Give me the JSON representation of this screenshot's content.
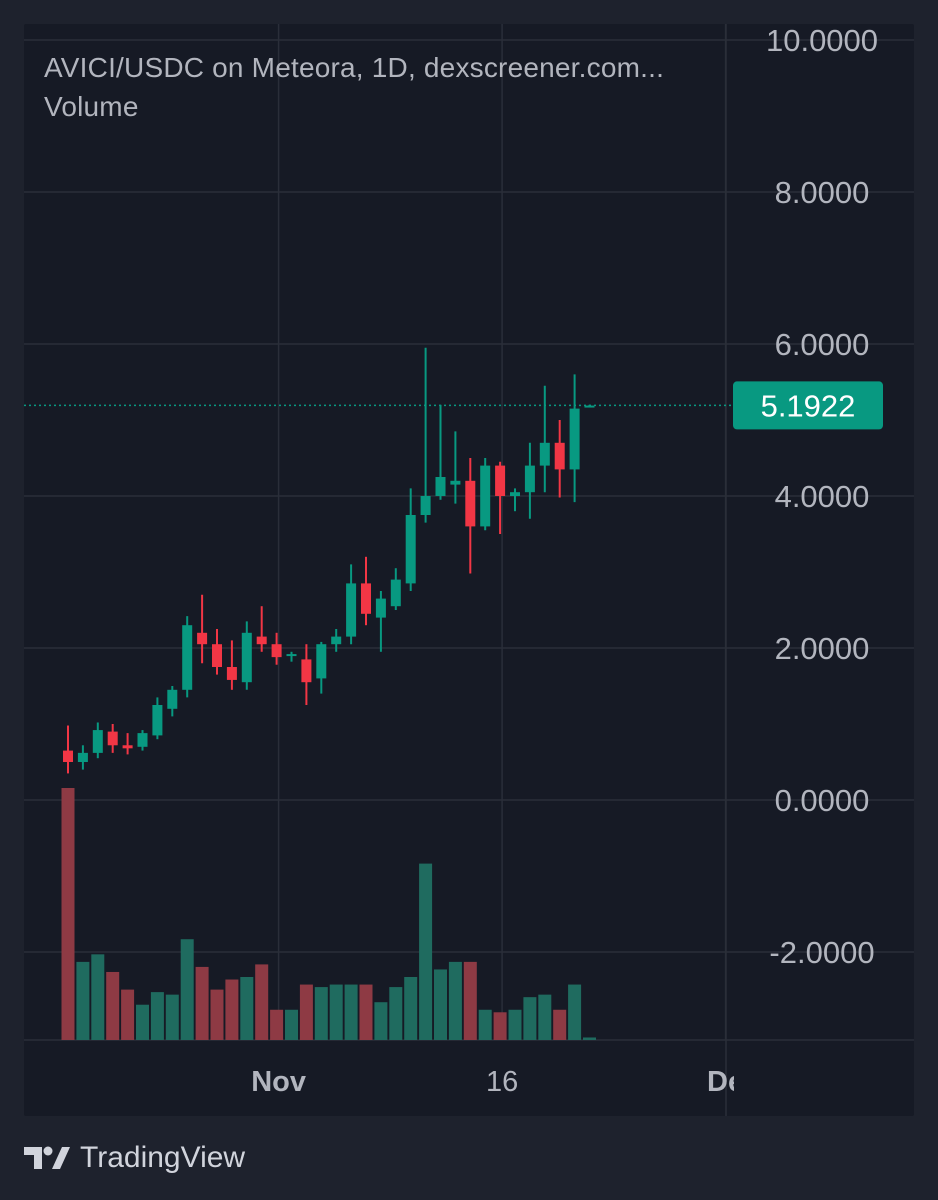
{
  "header": {
    "title": "AVICI/USDC on Meteora, 1D, dexscreener.com...",
    "volume_label": "Volume"
  },
  "footer": {
    "brand_icon": "tradingview-logo-icon",
    "brand_name": "TradingView"
  },
  "colors": {
    "background": "#161a25",
    "page_background": "#1e222d",
    "grid": "#2a2e39",
    "up": "#089981",
    "down": "#f23645",
    "volume_up": "#1f6b5f",
    "volume_down": "#8e3a44",
    "axis_text": "#b2b5be",
    "price_tag": "#089981"
  },
  "chart_data": {
    "type": "candlestick",
    "interval": "1D",
    "y_axis": {
      "ticks": [
        "10.0000",
        "8.0000",
        "6.0000",
        "4.0000",
        "2.0000",
        "0.0000",
        "-2.0000"
      ],
      "tick_values": [
        10,
        8,
        6,
        4,
        2,
        0,
        -2
      ],
      "range": [
        -3.2,
        10.4
      ],
      "position": "right"
    },
    "x_axis": {
      "ticks": [
        {
          "label": "Nov",
          "index": 14
        },
        {
          "label": "16",
          "index": 29
        },
        {
          "label": "De",
          "index": 44
        }
      ]
    },
    "last_price": {
      "value": 5.1922,
      "label": "5.1922"
    },
    "candles": [
      {
        "o": 0.65,
        "h": 0.98,
        "l": 0.35,
        "c": 0.5
      },
      {
        "o": 0.5,
        "h": 0.72,
        "l": 0.4,
        "c": 0.62
      },
      {
        "o": 0.62,
        "h": 1.02,
        "l": 0.55,
        "c": 0.92
      },
      {
        "o": 0.9,
        "h": 1.0,
        "l": 0.62,
        "c": 0.72
      },
      {
        "o": 0.72,
        "h": 0.88,
        "l": 0.6,
        "c": 0.68
      },
      {
        "o": 0.7,
        "h": 0.92,
        "l": 0.65,
        "c": 0.88
      },
      {
        "o": 0.85,
        "h": 1.35,
        "l": 0.8,
        "c": 1.25
      },
      {
        "o": 1.2,
        "h": 1.5,
        "l": 1.1,
        "c": 1.45
      },
      {
        "o": 1.45,
        "h": 2.42,
        "l": 1.35,
        "c": 2.3
      },
      {
        "o": 2.2,
        "h": 2.7,
        "l": 1.8,
        "c": 2.05
      },
      {
        "o": 2.05,
        "h": 2.25,
        "l": 1.65,
        "c": 1.75
      },
      {
        "o": 1.75,
        "h": 2.1,
        "l": 1.45,
        "c": 1.58
      },
      {
        "o": 1.55,
        "h": 2.35,
        "l": 1.45,
        "c": 2.2
      },
      {
        "o": 2.15,
        "h": 2.55,
        "l": 1.95,
        "c": 2.05
      },
      {
        "o": 2.05,
        "h": 2.2,
        "l": 1.78,
        "c": 1.88
      },
      {
        "o": 1.9,
        "h": 1.95,
        "l": 1.82,
        "c": 1.92
      },
      {
        "o": 1.85,
        "h": 2.05,
        "l": 1.25,
        "c": 1.55
      },
      {
        "o": 1.6,
        "h": 2.08,
        "l": 1.4,
        "c": 2.05
      },
      {
        "o": 2.05,
        "h": 2.25,
        "l": 1.95,
        "c": 2.15
      },
      {
        "o": 2.15,
        "h": 3.1,
        "l": 2.05,
        "c": 2.85
      },
      {
        "o": 2.85,
        "h": 3.2,
        "l": 2.3,
        "c": 2.45
      },
      {
        "o": 2.4,
        "h": 2.75,
        "l": 1.95,
        "c": 2.65
      },
      {
        "o": 2.55,
        "h": 3.05,
        "l": 2.5,
        "c": 2.9
      },
      {
        "o": 2.85,
        "h": 4.1,
        "l": 2.75,
        "c": 3.75
      },
      {
        "o": 3.75,
        "h": 5.95,
        "l": 3.65,
        "c": 4.0
      },
      {
        "o": 4.0,
        "h": 5.2,
        "l": 3.95,
        "c": 4.25
      },
      {
        "o": 4.15,
        "h": 4.85,
        "l": 3.9,
        "c": 4.2
      },
      {
        "o": 4.2,
        "h": 4.5,
        "l": 2.98,
        "c": 3.6
      },
      {
        "o": 3.6,
        "h": 4.5,
        "l": 3.55,
        "c": 4.4
      },
      {
        "o": 4.4,
        "h": 4.45,
        "l": 3.5,
        "c": 4.0
      },
      {
        "o": 4.0,
        "h": 4.1,
        "l": 3.8,
        "c": 4.05
      },
      {
        "o": 4.05,
        "h": 4.7,
        "l": 3.7,
        "c": 4.4
      },
      {
        "o": 4.4,
        "h": 5.45,
        "l": 4.05,
        "c": 4.7
      },
      {
        "o": 4.7,
        "h": 5.0,
        "l": 3.98,
        "c": 4.35
      },
      {
        "o": 4.35,
        "h": 5.6,
        "l": 3.92,
        "c": 5.15
      },
      {
        "o": 5.18,
        "h": 5.2,
        "l": 5.18,
        "c": 5.19
      }
    ],
    "volume_relative": [
      1.0,
      0.31,
      0.34,
      0.27,
      0.2,
      0.14,
      0.19,
      0.18,
      0.4,
      0.29,
      0.2,
      0.24,
      0.25,
      0.3,
      0.12,
      0.12,
      0.22,
      0.21,
      0.22,
      0.22,
      0.22,
      0.15,
      0.21,
      0.25,
      0.7,
      0.28,
      0.31,
      0.31,
      0.12,
      0.11,
      0.12,
      0.17,
      0.18,
      0.12,
      0.22,
      0.01
    ],
    "grid": true
  }
}
